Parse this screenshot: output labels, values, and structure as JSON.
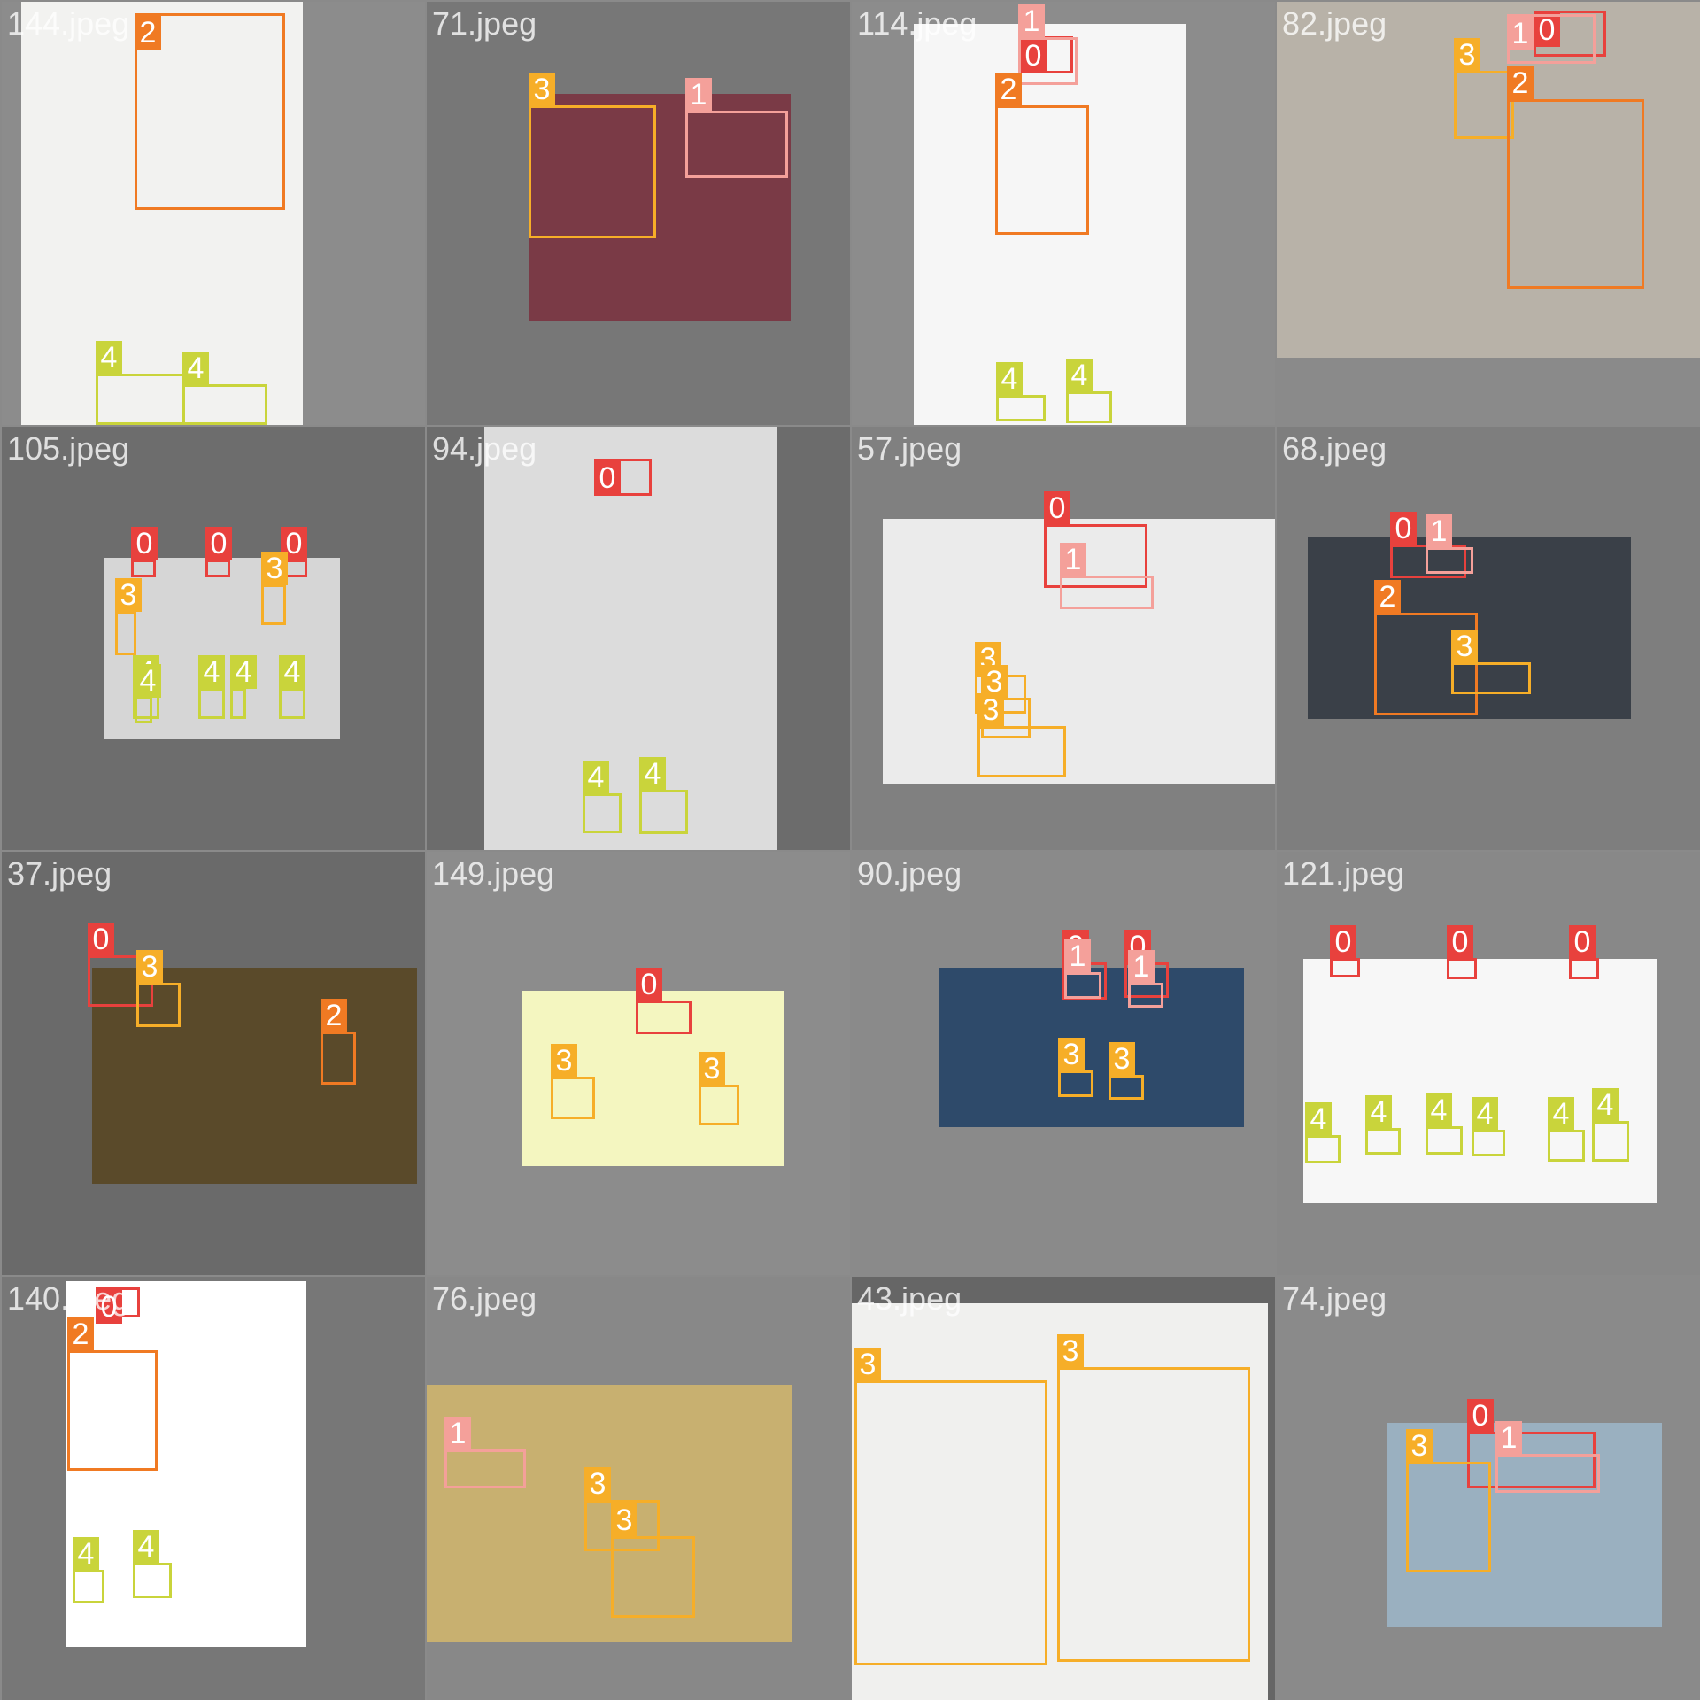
{
  "class_colors": {
    "0": "#e8413d",
    "1": "#f4a09a",
    "2": "#f07a23",
    "3": "#f6ae28",
    "4": "#c9d43b"
  },
  "tiles": [
    {
      "name": "144.jpeg",
      "bg": "#8c8c8c",
      "photo_color": "#f2f2f0",
      "boxes": [
        "2",
        "4",
        "4"
      ]
    },
    {
      "name": "71.jpeg",
      "bg": "#777777",
      "photo_color": "#7a3a46",
      "boxes": [
        "3",
        "1"
      ]
    },
    {
      "name": "114.jpeg",
      "bg": "#8c8c8c",
      "photo_color": "#f6f6f6",
      "boxes": [
        "0",
        "1",
        "2",
        "4",
        "4"
      ]
    },
    {
      "name": "82.jpeg",
      "bg": "#8a8a8a",
      "photo_color": "#b8b2a8",
      "boxes": [
        "0",
        "1",
        "3",
        "2"
      ]
    },
    {
      "name": "105.jpeg",
      "bg": "#6d6d6d",
      "photo_color": "#d6d6d6",
      "boxes": [
        "0",
        "0",
        "0",
        "3",
        "3",
        "4",
        "4",
        "4",
        "4",
        "4"
      ]
    },
    {
      "name": "94.jpeg",
      "bg": "#6c6c6c",
      "photo_color": "#dcdcdc",
      "boxes": [
        "0",
        "4",
        "4"
      ]
    },
    {
      "name": "57.jpeg",
      "bg": "#808080",
      "photo_color": "#ebebeb",
      "boxes": [
        "0",
        "1",
        "3",
        "3",
        "3"
      ]
    },
    {
      "name": "68.jpeg",
      "bg": "#7e7e7e",
      "photo_color": "#3a4048",
      "boxes": [
        "0",
        "1",
        "2",
        "3"
      ]
    },
    {
      "name": "37.jpeg",
      "bg": "#6a6a6a",
      "photo_color": "#5a4a2a",
      "boxes": [
        "0",
        "3",
        "2"
      ]
    },
    {
      "name": "149.jpeg",
      "bg": "#8c8c8c",
      "photo_color": "#f4f6c0",
      "boxes": [
        "0",
        "3",
        "3"
      ]
    },
    {
      "name": "90.jpeg",
      "bg": "#8a8a8a",
      "photo_color": "#2e4a6a",
      "boxes": [
        "0",
        "0",
        "1",
        "1",
        "3",
        "3"
      ]
    },
    {
      "name": "121.jpeg",
      "bg": "#888888",
      "photo_color": "#f7f7f7",
      "boxes": [
        "0",
        "0",
        "0",
        "4",
        "4",
        "4",
        "4",
        "4",
        "4"
      ]
    },
    {
      "name": "140.jpeg",
      "bg": "#777777",
      "photo_color": "#ffffff",
      "boxes": [
        "0",
        "2",
        "4",
        "4"
      ]
    },
    {
      "name": "76.jpeg",
      "bg": "#888888",
      "photo_color": "#c8b070",
      "boxes": [
        "1",
        "3",
        "3"
      ]
    },
    {
      "name": "43.jpeg",
      "bg": "#666666",
      "photo_color": "#f0f0ee",
      "boxes": [
        "3",
        "3"
      ]
    },
    {
      "name": "74.jpeg",
      "bg": "#8a8a8a",
      "photo_color": "#9ab0c0",
      "boxes": [
        "0",
        "1",
        "3"
      ]
    }
  ]
}
